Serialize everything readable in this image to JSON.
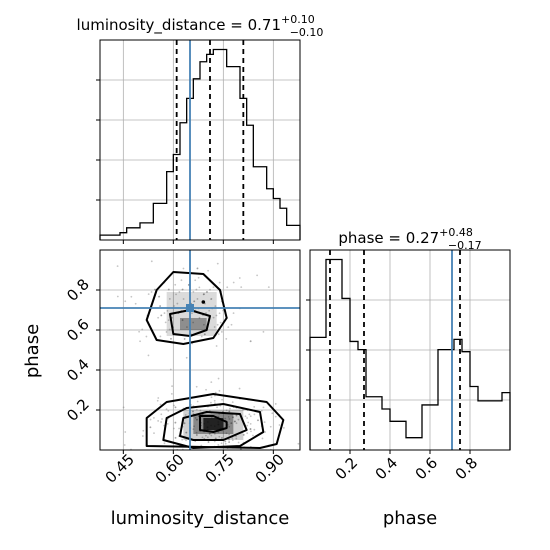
{
  "chart_data": {
    "type": "corner",
    "parameters": [
      "luminosity_distance",
      "phase"
    ],
    "truths": {
      "luminosity_distance": 0.65,
      "phase": 0.71
    },
    "marginals": [
      {
        "parameter": "luminosity_distance",
        "title_prefix": "luminosity_distance = ",
        "median": "0.71",
        "plus": "+0.10",
        "minus": "−0.10",
        "quantiles": [
          0.61,
          0.71,
          0.81
        ],
        "xlim": [
          0.38,
          0.98
        ],
        "bin_edges": [
          0.38,
          0.4,
          0.42,
          0.44,
          0.46,
          0.48,
          0.5,
          0.52,
          0.54,
          0.56,
          0.58,
          0.6,
          0.62,
          0.64,
          0.66,
          0.68,
          0.7,
          0.72,
          0.74,
          0.76,
          0.78,
          0.8,
          0.82,
          0.84,
          0.86,
          0.88,
          0.9,
          0.92,
          0.94,
          0.96,
          0.98
        ],
        "density": [
          0.02,
          0.02,
          0.02,
          0.03,
          0.05,
          0.05,
          0.07,
          0.07,
          0.15,
          0.15,
          0.28,
          0.35,
          0.48,
          0.58,
          0.66,
          0.73,
          0.76,
          0.78,
          0.78,
          0.71,
          0.71,
          0.58,
          0.47,
          0.3,
          0.3,
          0.21,
          0.17,
          0.13,
          0.06,
          0.06
        ]
      },
      {
        "parameter": "phase",
        "title_prefix": "phase = ",
        "median": "0.27",
        "plus": "+0.48",
        "minus": "−0.17",
        "quantiles": [
          0.1,
          0.27,
          0.75
        ],
        "xlim": [
          0.0,
          1.0
        ],
        "bin_edges": [
          0.0,
          0.04,
          0.08,
          0.12,
          0.16,
          0.2,
          0.24,
          0.28,
          0.32,
          0.36,
          0.4,
          0.44,
          0.48,
          0.52,
          0.56,
          0.6,
          0.64,
          0.68,
          0.72,
          0.76,
          0.8,
          0.84,
          0.88,
          0.92,
          0.96,
          1.0
        ],
        "density": [
          0.55,
          0.55,
          0.93,
          0.93,
          0.74,
          0.53,
          0.49,
          0.26,
          0.26,
          0.2,
          0.14,
          0.14,
          0.06,
          0.06,
          0.22,
          0.22,
          0.49,
          0.49,
          0.54,
          0.48,
          0.31,
          0.24,
          0.24,
          0.24,
          0.28
        ]
      }
    ],
    "joint": {
      "x": "luminosity_distance",
      "y": "phase",
      "xlim": [
        0.38,
        0.98
      ],
      "ylim": [
        0.0,
        1.0
      ],
      "modes": [
        {
          "center": [
            0.72,
            0.12
          ],
          "spread": [
            0.045,
            0.045
          ]
        },
        {
          "center": [
            0.65,
            0.7
          ],
          "spread": [
            0.04,
            0.06
          ]
        }
      ]
    },
    "ticks": {
      "luminosity_distance": [
        "0.45",
        "0.60",
        "0.75",
        "0.90"
      ],
      "phase_y": [
        "0.2",
        "0.4",
        "0.6",
        "0.8"
      ],
      "phase_x": [
        "0.2",
        "0.4",
        "0.6",
        "0.8"
      ]
    },
    "xlabel_left": "luminosity_distance",
    "xlabel_right": "phase",
    "ylabel": "phase",
    "colors": {
      "hist": "#000000",
      "truth": "#4682b4",
      "grid": "#b0b0b0",
      "samples": "#7f7f7f"
    },
    "grid": true
  }
}
